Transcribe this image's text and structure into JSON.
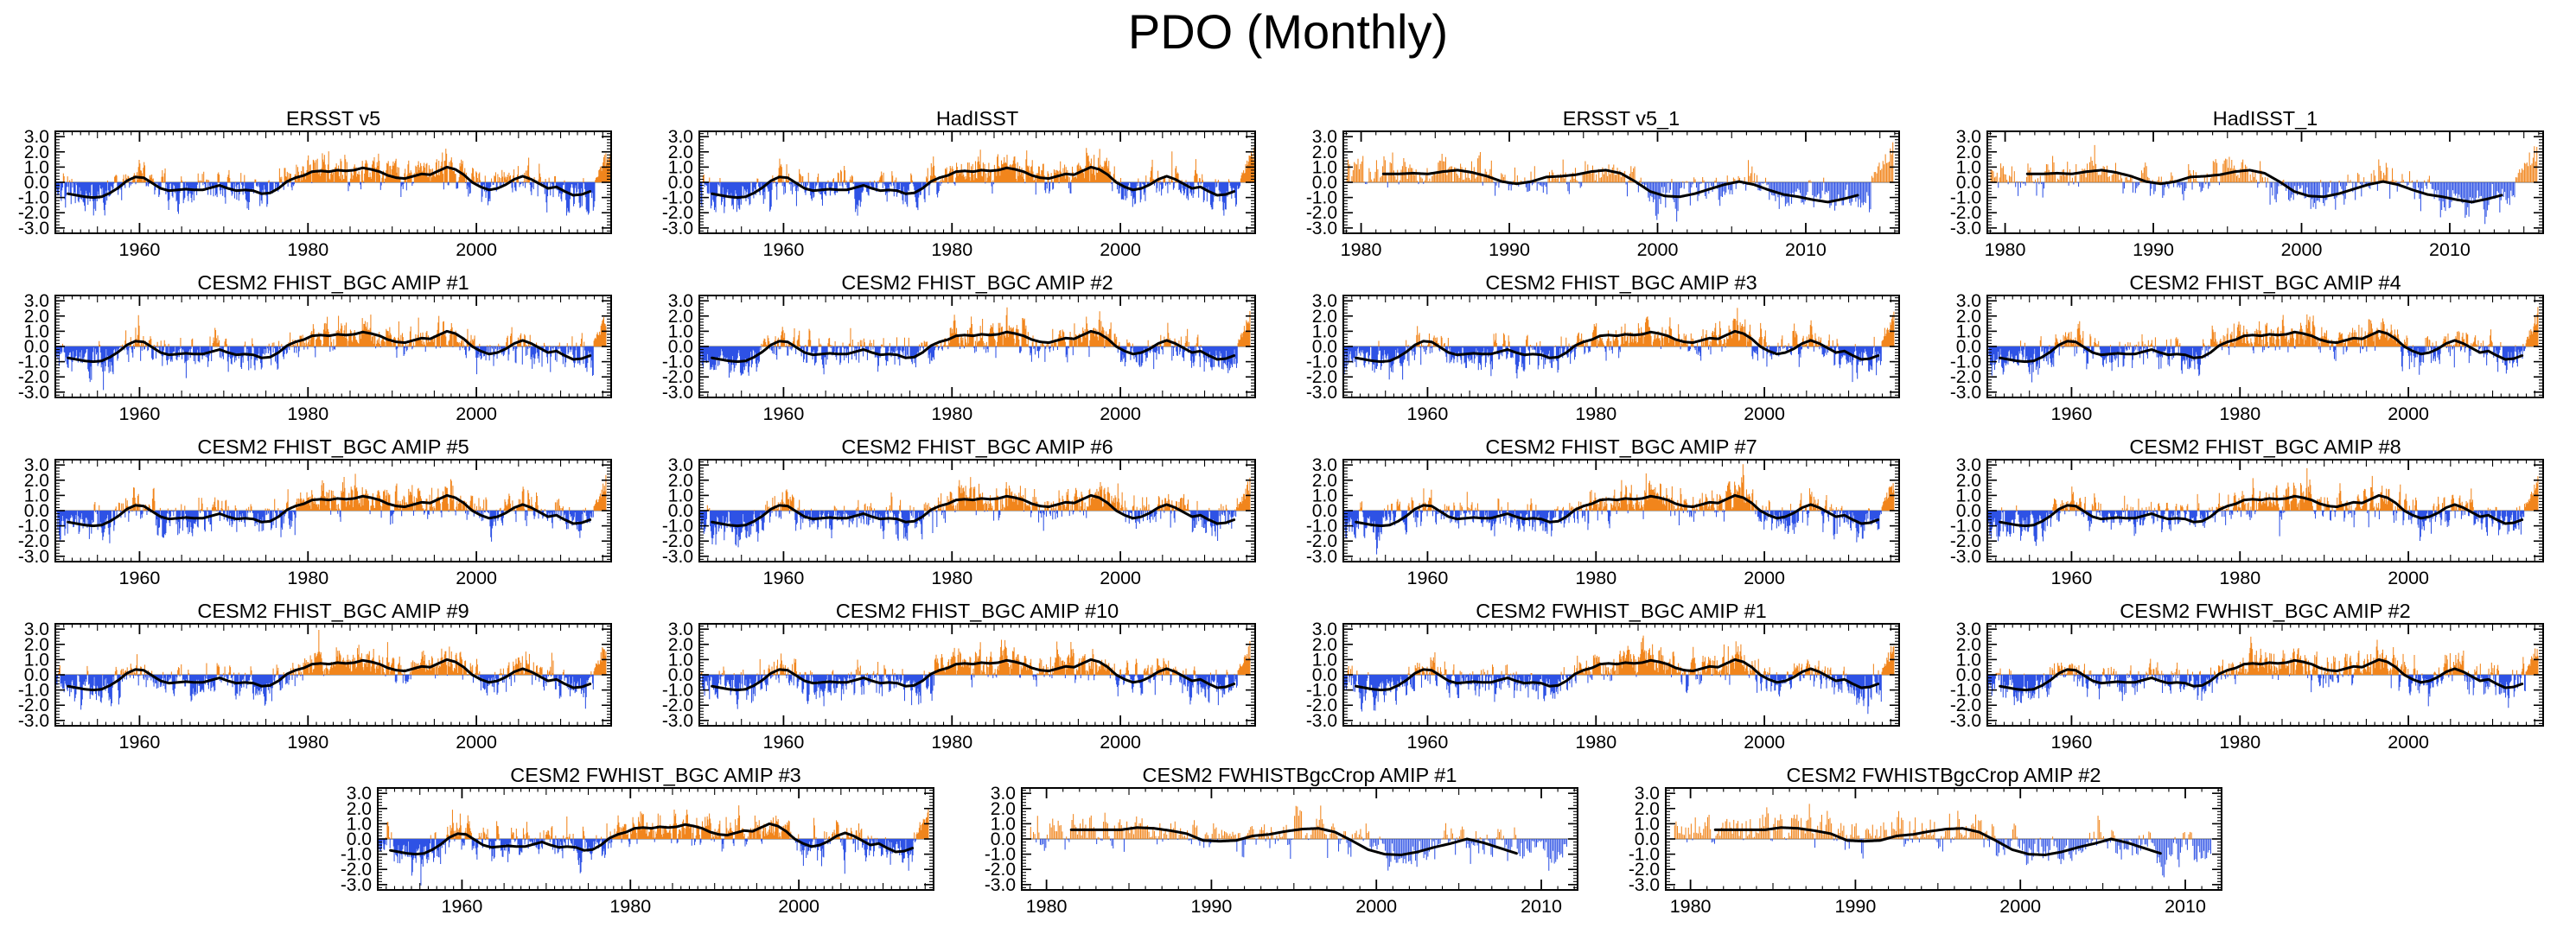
{
  "chart_data": {
    "type": "bar",
    "title": "PDO (Monthly)",
    "ylabel": "",
    "xlabel": "",
    "ylim": [
      -3.35,
      3.35
    ],
    "yticks": [
      3.0,
      2.0,
      1.0,
      0.0,
      -1.0,
      -2.0,
      -3.0
    ],
    "grid": false,
    "legend": "none",
    "bars_note": "Each panel: monthly PDO index anomaly bars (orange positive, blue negative) with a black low-pass smoothed curve. Individual monthly bar values are not legible at screenshot scale; bars are approximated procedurally around the smoothed annual curve listed per panel.",
    "curves": {
      "long": {
        "start_year": 1951,
        "values": [
          -0.75,
          -0.85,
          -0.95,
          -1.0,
          -0.95,
          -0.7,
          -0.35,
          0.1,
          0.35,
          0.3,
          -0.05,
          -0.4,
          -0.55,
          -0.5,
          -0.45,
          -0.5,
          -0.5,
          -0.35,
          -0.2,
          -0.4,
          -0.55,
          -0.5,
          -0.55,
          -0.75,
          -0.7,
          -0.4,
          0.05,
          0.3,
          0.45,
          0.7,
          0.75,
          0.7,
          0.8,
          0.75,
          0.8,
          0.95,
          0.85,
          0.7,
          0.45,
          0.3,
          0.25,
          0.4,
          0.55,
          0.5,
          0.75,
          1.0,
          0.85,
          0.5,
          0.0,
          -0.3,
          -0.5,
          -0.4,
          -0.15,
          0.2,
          0.4,
          0.2,
          -0.1,
          -0.4,
          -0.3,
          -0.6,
          -0.85,
          -0.8,
          -0.6
        ]
      },
      "recent": {
        "start_year": 1981,
        "values": [
          0.55,
          0.55,
          0.6,
          0.55,
          0.7,
          0.8,
          0.65,
          0.4,
          0.05,
          -0.1,
          0.05,
          0.35,
          0.4,
          0.5,
          0.7,
          0.8,
          0.6,
          0.05,
          -0.6,
          -0.9,
          -0.95,
          -0.75,
          -0.45,
          -0.15,
          0.05,
          -0.15,
          -0.5,
          -0.8,
          -0.95,
          -1.15,
          -1.3,
          -1.1,
          -0.85
        ]
      },
      "recent_short": {
        "start_year": 1981,
        "values": [
          0.6,
          0.6,
          0.6,
          0.6,
          0.75,
          0.7,
          0.55,
          0.35,
          -0.1,
          -0.15,
          -0.1,
          0.2,
          0.3,
          0.5,
          0.65,
          0.7,
          0.45,
          -0.1,
          -0.7,
          -1.0,
          -1.05,
          -0.85,
          -0.55,
          -0.3,
          0.0,
          -0.25,
          -0.6,
          -0.95
        ]
      }
    },
    "panels": [
      {
        "title": "ERSST v5",
        "xlim": [
          1950,
          2016
        ],
        "xticks": [
          1960,
          1980,
          2000
        ],
        "bars_start": 1950,
        "bars_end": 2015.9,
        "curve": "long",
        "seed": 11,
        "tail": {
          "months": 20,
          "peak": 2.4
        }
      },
      {
        "title": "HadISST",
        "xlim": [
          1950,
          2016
        ],
        "xticks": [
          1960,
          1980,
          2000
        ],
        "bars_start": 1950,
        "bars_end": 2015.9,
        "curve": "long",
        "seed": 12,
        "tail": {
          "months": 20,
          "peak": 2.3
        }
      },
      {
        "title": "ERSST v5_1",
        "xlim": [
          1978.8,
          2016.3
        ],
        "xticks": [
          1980,
          1990,
          2000,
          2010
        ],
        "bars_start": 1979,
        "bars_end": 2015.9,
        "curve": "recent",
        "seed": 13,
        "tail": {
          "months": 18,
          "peak": 2.5
        }
      },
      {
        "title": "HadISST_1",
        "xlim": [
          1978.8,
          2016.3
        ],
        "xticks": [
          1980,
          1990,
          2000,
          2010
        ],
        "bars_start": 1979,
        "bars_end": 2015.9,
        "curve": "recent",
        "seed": 14,
        "tail": {
          "months": 18,
          "peak": 2.4
        }
      },
      {
        "title": "CESM2 FHIST_BGC AMIP #1",
        "xlim": [
          1950,
          2016
        ],
        "xticks": [
          1960,
          1980,
          2000
        ],
        "bars_start": 1950,
        "bars_end": 2015.4,
        "curve": "long",
        "seed": 21,
        "tail": {
          "months": 18,
          "peak": 2.1
        }
      },
      {
        "title": "CESM2 FHIST_BGC AMIP #2",
        "xlim": [
          1950,
          2016
        ],
        "xticks": [
          1960,
          1980,
          2000
        ],
        "bars_start": 1950,
        "bars_end": 2015.4,
        "curve": "long",
        "seed": 22,
        "tail": {
          "months": 18,
          "peak": 2.0
        }
      },
      {
        "title": "CESM2 FHIST_BGC AMIP #3",
        "xlim": [
          1950,
          2016
        ],
        "xticks": [
          1960,
          1980,
          2000
        ],
        "bars_start": 1950,
        "bars_end": 2015.4,
        "curve": "long",
        "seed": 23,
        "tail": {
          "months": 18,
          "peak": 2.0
        }
      },
      {
        "title": "CESM2 FHIST_BGC AMIP #4",
        "xlim": [
          1950,
          2016
        ],
        "xticks": [
          1960,
          1980,
          2000
        ],
        "bars_start": 1950,
        "bars_end": 2015.4,
        "curve": "long",
        "seed": 24,
        "tail": {
          "months": 18,
          "peak": 2.2
        }
      },
      {
        "title": "CESM2 FHIST_BGC AMIP #5",
        "xlim": [
          1950,
          2016
        ],
        "xticks": [
          1960,
          1980,
          2000
        ],
        "bars_start": 1950,
        "bars_end": 2015.4,
        "curve": "long",
        "seed": 25,
        "tail": {
          "months": 18,
          "peak": 2.0
        }
      },
      {
        "title": "CESM2 FHIST_BGC AMIP #6",
        "xlim": [
          1950,
          2016
        ],
        "xticks": [
          1960,
          1980,
          2000
        ],
        "bars_start": 1950,
        "bars_end": 2015.4,
        "curve": "long",
        "seed": 26,
        "tail": {
          "months": 18,
          "peak": 1.9
        }
      },
      {
        "title": "CESM2 FHIST_BGC AMIP #7",
        "xlim": [
          1950,
          2016
        ],
        "xticks": [
          1960,
          1980,
          2000
        ],
        "bars_start": 1950,
        "bars_end": 2015.4,
        "curve": "long",
        "seed": 27,
        "tail": {
          "months": 18,
          "peak": 2.1
        }
      },
      {
        "title": "CESM2 FHIST_BGC AMIP #8",
        "xlim": [
          1950,
          2016
        ],
        "xticks": [
          1960,
          1980,
          2000
        ],
        "bars_start": 1950,
        "bars_end": 2015.4,
        "curve": "long",
        "seed": 28,
        "tail": {
          "months": 18,
          "peak": 2.0
        }
      },
      {
        "title": "CESM2 FHIST_BGC AMIP #9",
        "xlim": [
          1950,
          2016
        ],
        "xticks": [
          1960,
          1980,
          2000
        ],
        "bars_start": 1950,
        "bars_end": 2015.4,
        "curve": "long",
        "seed": 29,
        "tail": {
          "months": 18,
          "peak": 2.1
        }
      },
      {
        "title": "CESM2 FHIST_BGC AMIP #10",
        "xlim": [
          1950,
          2016
        ],
        "xticks": [
          1960,
          1980,
          2000
        ],
        "bars_start": 1950,
        "bars_end": 2015.4,
        "curve": "long",
        "seed": 30,
        "tail": {
          "months": 18,
          "peak": 2.0
        }
      },
      {
        "title": "CESM2 FWHIST_BGC AMIP #1",
        "xlim": [
          1950,
          2016
        ],
        "xticks": [
          1960,
          1980,
          2000
        ],
        "bars_start": 1950,
        "bars_end": 2015.4,
        "curve": "long",
        "seed": 31,
        "tail": {
          "months": 18,
          "peak": 2.1
        }
      },
      {
        "title": "CESM2 FWHIST_BGC AMIP #2",
        "xlim": [
          1950,
          2016
        ],
        "xticks": [
          1960,
          1980,
          2000
        ],
        "bars_start": 1950,
        "bars_end": 2015.4,
        "curve": "long",
        "seed": 32,
        "tail": {
          "months": 18,
          "peak": 2.0
        }
      },
      {
        "title": "CESM2 FWHIST_BGC AMIP #3",
        "xlim": [
          1950,
          2016
        ],
        "xticks": [
          1960,
          1980,
          2000
        ],
        "bars_start": 1950,
        "bars_end": 2015.4,
        "curve": "long",
        "seed": 33,
        "tail": {
          "months": 18,
          "peak": 1.9
        }
      },
      {
        "title": "CESM2 FWHISTBgcCrop AMIP #1",
        "xlim": [
          1978.5,
          2012.2
        ],
        "xticks": [
          1980,
          1990,
          2000,
          2010
        ],
        "bars_start": 1979,
        "bars_end": 2011.6,
        "curve": "recent_short",
        "seed": 41,
        "tail": null
      },
      {
        "title": "CESM2 FWHISTBgcCrop AMIP #2",
        "xlim": [
          1978.5,
          2012.2
        ],
        "xticks": [
          1980,
          1990,
          2000,
          2010
        ],
        "bars_start": 1979,
        "bars_end": 2011.6,
        "curve": "recent_short",
        "seed": 42,
        "tail": null
      }
    ],
    "layout": {
      "rows": [
        [
          0,
          1,
          2,
          3
        ],
        [
          4,
          5,
          6,
          7
        ],
        [
          8,
          9,
          10,
          11
        ],
        [
          12,
          13,
          14,
          15
        ],
        [
          16,
          17,
          18
        ]
      ],
      "last_row_centered": true
    }
  },
  "style": {
    "bar_positive": "#F1851C",
    "bar_negative": "#2E52E5",
    "smooth_line": "#000000",
    "frame": "#000000",
    "zero_line": "#808080",
    "text": "#000000",
    "background": "#FFFFFF"
  }
}
